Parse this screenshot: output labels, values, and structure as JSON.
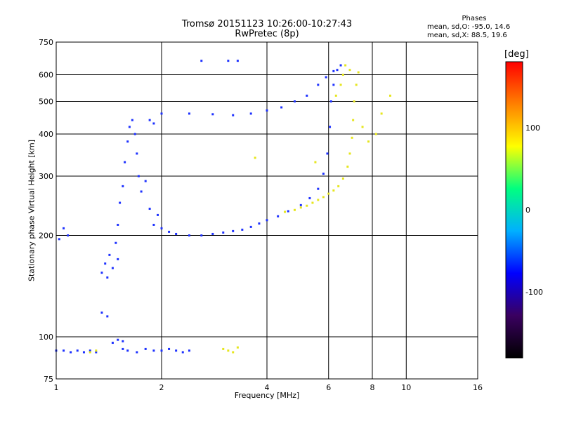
{
  "chart_data": {
    "type": "scatter",
    "title": "Tromsø 20151123 10:26:00-10:27:43",
    "subtitle": "RwPretec (8p)",
    "xlabel": "Frequency [MHz]",
    "ylabel": "Stationary phase Virtual Height [km]",
    "x_scale": "log",
    "y_scale": "log",
    "xlim": [
      1,
      16
    ],
    "ylim": [
      75,
      750
    ],
    "x_ticks": [
      1,
      2,
      4,
      6,
      8,
      10,
      16
    ],
    "x_tick_labels": [
      "1",
      "2",
      "4",
      "6",
      "8",
      "10",
      "16"
    ],
    "y_ticks": [
      75,
      100,
      200,
      300,
      400,
      500,
      600,
      750
    ],
    "y_tick_labels": [
      "75",
      "100",
      "200",
      "300",
      "400",
      "500",
      "600",
      "750"
    ],
    "grid": true,
    "stats": {
      "heading": "Phases",
      "o_mode": "mean, sd,O: -95.0, 14.6",
      "x_mode": "mean, sd,X:  88.5, 19.6"
    },
    "colorbar": {
      "label": "[deg]",
      "range": [
        -180,
        180
      ],
      "ticks": [
        100,
        0,
        -100
      ],
      "tick_labels": [
        "100",
        "0",
        "-100"
      ],
      "colors": [
        "#000000",
        "#3a0060",
        "#0000ff",
        "#00b0ff",
        "#00ff80",
        "#ffff00",
        "#ff8000",
        "#ff0000"
      ]
    },
    "series": [
      {
        "mode": "O",
        "color": "#1e32ff",
        "phase_mean": -95,
        "points": [
          [
            1.0,
            91
          ],
          [
            1.05,
            91
          ],
          [
            1.1,
            90
          ],
          [
            1.15,
            91
          ],
          [
            1.2,
            90
          ],
          [
            1.25,
            91
          ],
          [
            1.3,
            90
          ],
          [
            1.02,
            195
          ],
          [
            1.05,
            210
          ],
          [
            1.08,
            200
          ],
          [
            1.35,
            155
          ],
          [
            1.38,
            165
          ],
          [
            1.4,
            150
          ],
          [
            1.42,
            175
          ],
          [
            1.45,
            160
          ],
          [
            1.48,
            190
          ],
          [
            1.5,
            170
          ],
          [
            1.5,
            215
          ],
          [
            1.52,
            250
          ],
          [
            1.55,
            280
          ],
          [
            1.57,
            330
          ],
          [
            1.6,
            380
          ],
          [
            1.62,
            420
          ],
          [
            1.65,
            440
          ],
          [
            1.68,
            400
          ],
          [
            1.7,
            350
          ],
          [
            1.72,
            300
          ],
          [
            1.75,
            270
          ],
          [
            1.8,
            290
          ],
          [
            1.85,
            240
          ],
          [
            1.9,
            215
          ],
          [
            1.95,
            230
          ],
          [
            2.0,
            210
          ],
          [
            2.1,
            205
          ],
          [
            2.2,
            202
          ],
          [
            2.4,
            200
          ],
          [
            2.6,
            200
          ],
          [
            2.8,
            202
          ],
          [
            3.0,
            204
          ],
          [
            3.2,
            206
          ],
          [
            3.4,
            208
          ],
          [
            3.6,
            212
          ],
          [
            3.8,
            217
          ],
          [
            4.0,
            222
          ],
          [
            4.3,
            228
          ],
          [
            4.6,
            236
          ],
          [
            5.0,
            246
          ],
          [
            5.3,
            258
          ],
          [
            5.6,
            275
          ],
          [
            5.8,
            305
          ],
          [
            5.95,
            350
          ],
          [
            6.05,
            420
          ],
          [
            6.1,
            500
          ],
          [
            6.2,
            560
          ],
          [
            6.35,
            620
          ],
          [
            6.5,
            640
          ],
          [
            2.0,
            460
          ],
          [
            2.4,
            460
          ],
          [
            2.8,
            458
          ],
          [
            3.2,
            455
          ],
          [
            3.6,
            460
          ],
          [
            4.0,
            470
          ],
          [
            4.4,
            480
          ],
          [
            4.8,
            500
          ],
          [
            5.2,
            520
          ],
          [
            5.6,
            560
          ],
          [
            5.9,
            590
          ],
          [
            6.2,
            615
          ],
          [
            1.85,
            440
          ],
          [
            1.9,
            430
          ],
          [
            1.55,
            92
          ],
          [
            1.6,
            91
          ],
          [
            1.7,
            90
          ],
          [
            1.8,
            92
          ],
          [
            1.9,
            91
          ],
          [
            2.0,
            91
          ],
          [
            2.1,
            92
          ],
          [
            2.2,
            91
          ],
          [
            2.3,
            90
          ],
          [
            2.4,
            91
          ],
          [
            1.35,
            118
          ],
          [
            1.4,
            115
          ],
          [
            1.45,
            96
          ],
          [
            1.5,
            98
          ],
          [
            1.55,
            97
          ],
          [
            2.6,
            660
          ],
          [
            3.1,
            660
          ],
          [
            3.3,
            660
          ]
        ]
      },
      {
        "mode": "X",
        "color": "#e6e61e",
        "phase_mean": 88.5,
        "points": [
          [
            4.5,
            235
          ],
          [
            4.8,
            238
          ],
          [
            5.0,
            242
          ],
          [
            5.2,
            245
          ],
          [
            5.4,
            250
          ],
          [
            5.6,
            255
          ],
          [
            5.8,
            260
          ],
          [
            6.0,
            266
          ],
          [
            6.2,
            272
          ],
          [
            6.4,
            280
          ],
          [
            6.6,
            295
          ],
          [
            6.8,
            320
          ],
          [
            6.9,
            350
          ],
          [
            7.0,
            390
          ],
          [
            7.05,
            440
          ],
          [
            7.1,
            500
          ],
          [
            7.2,
            560
          ],
          [
            7.3,
            610
          ],
          [
            6.7,
            640
          ],
          [
            6.9,
            620
          ],
          [
            3.0,
            92
          ],
          [
            3.1,
            91
          ],
          [
            3.2,
            90
          ],
          [
            3.3,
            93
          ],
          [
            7.5,
            420
          ],
          [
            7.8,
            380
          ],
          [
            8.2,
            400
          ],
          [
            8.5,
            460
          ],
          [
            9.0,
            520
          ],
          [
            6.5,
            560
          ],
          [
            6.6,
            600
          ],
          [
            6.3,
            520
          ],
          [
            1.3,
            91
          ],
          [
            1.25,
            90
          ],
          [
            3.7,
            340
          ],
          [
            5.5,
            330
          ]
        ]
      }
    ]
  }
}
